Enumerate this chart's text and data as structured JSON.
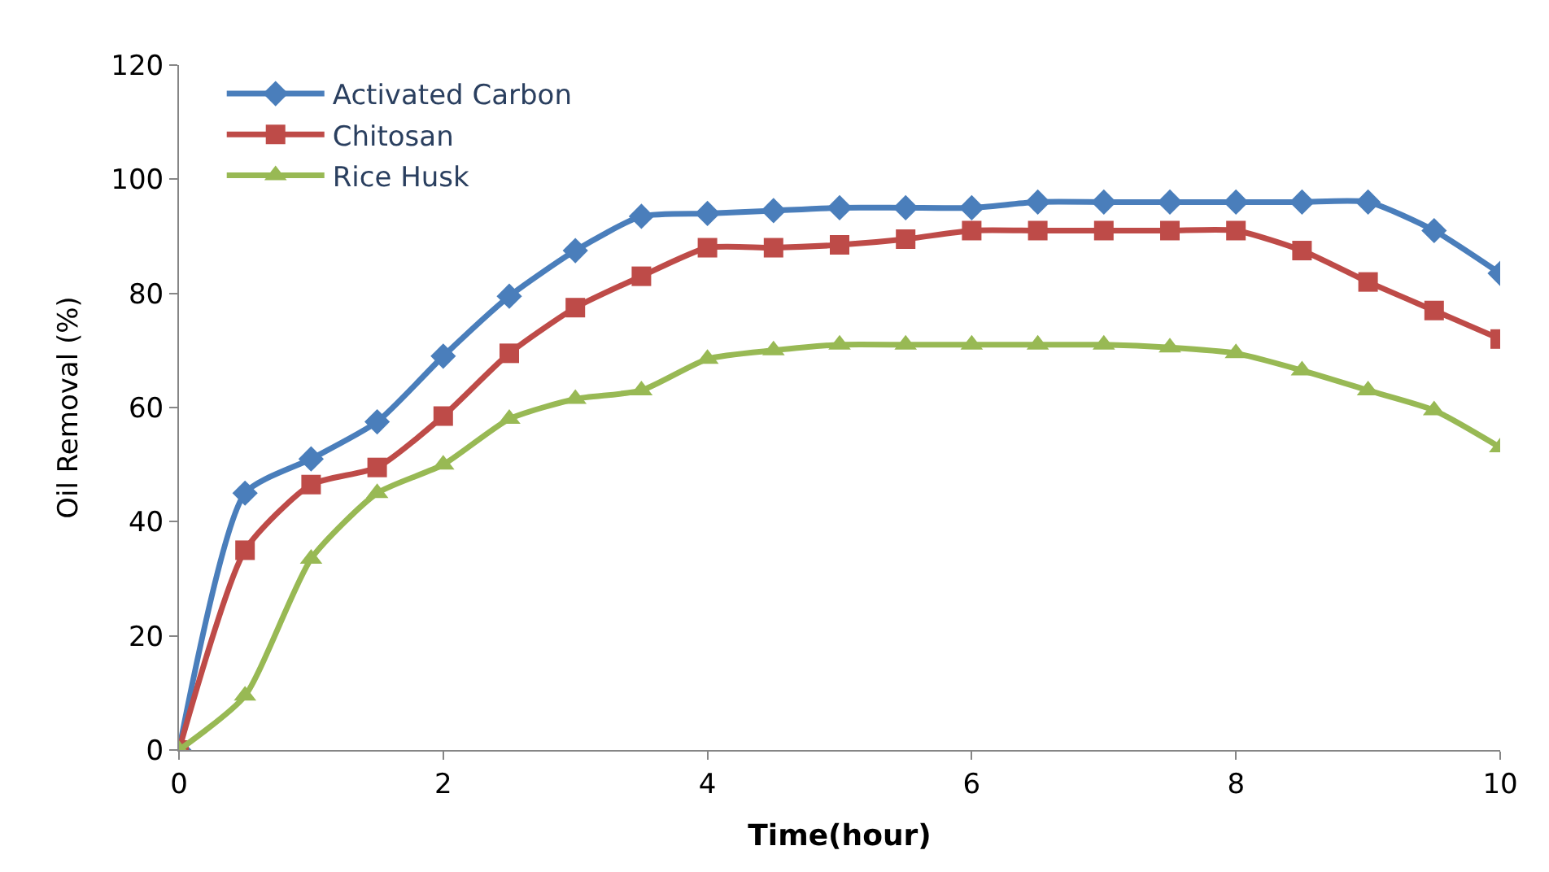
{
  "chart_data": {
    "type": "line",
    "xlabel": "Time(hour)",
    "ylabel": "Oil Removal (%)",
    "x": [
      0,
      0.5,
      1,
      1.5,
      2,
      2.5,
      3,
      3.5,
      4,
      4.5,
      5,
      5.5,
      6,
      6.5,
      7,
      7.5,
      8,
      8.5,
      9,
      9.5,
      10
    ],
    "xlim": [
      0,
      10
    ],
    "xticks": [
      0,
      2,
      4,
      6,
      8,
      10
    ],
    "ylim": [
      0,
      120
    ],
    "yticks": [
      0,
      20,
      40,
      60,
      80,
      100,
      120
    ],
    "legend": "top left",
    "line_style": "solid",
    "series": [
      {
        "name": "Activated Carbon",
        "color": "#4a7ebb",
        "marker": "diamond",
        "values": [
          0,
          45,
          51,
          57.5,
          69,
          79.5,
          87.5,
          93.5,
          94,
          94.5,
          95,
          95,
          95,
          96,
          96,
          96,
          96,
          96,
          96,
          91,
          83.5
        ]
      },
      {
        "name": "Chitosan",
        "color": "#be4b48",
        "marker": "square",
        "values": [
          0,
          35,
          46.5,
          49.5,
          58.5,
          69.5,
          77.5,
          83,
          88,
          88,
          88.5,
          89.5,
          91,
          91,
          91,
          91,
          91,
          87.5,
          82,
          77,
          72
        ]
      },
      {
        "name": "Rice Husk",
        "color": "#98b954",
        "marker": "triangle",
        "values": [
          0,
          9.5,
          33.5,
          45,
          50,
          58,
          61.5,
          63,
          68.5,
          70,
          71,
          71,
          71,
          71,
          71,
          70.5,
          69.5,
          66.5,
          63,
          59.5,
          53
        ]
      }
    ]
  }
}
